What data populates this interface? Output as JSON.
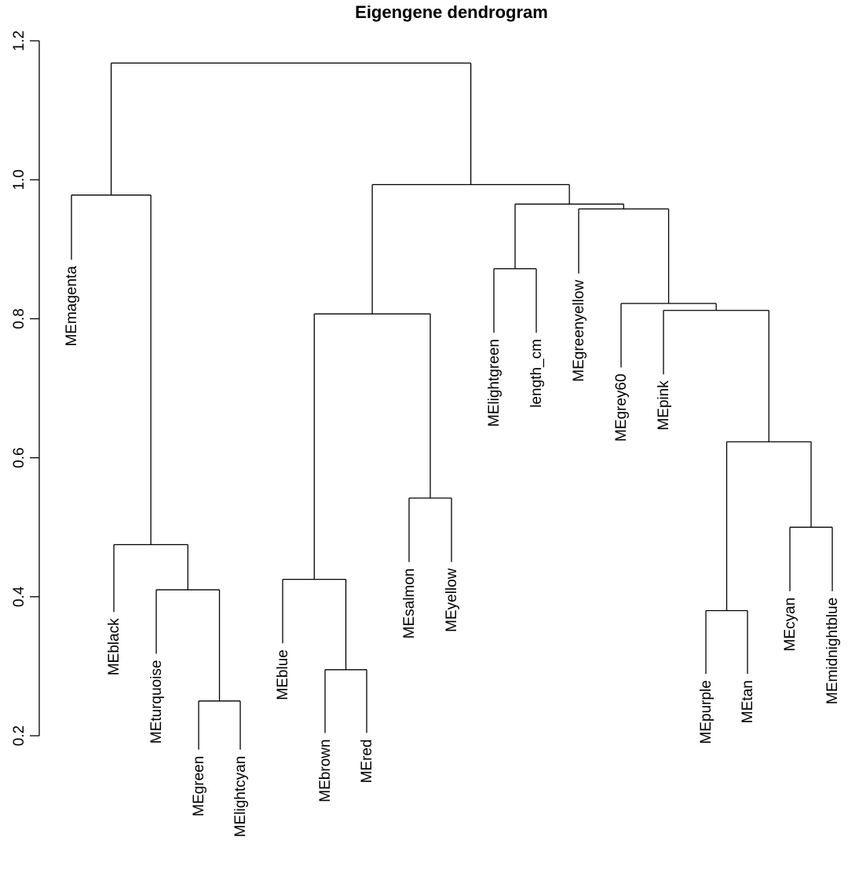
{
  "chart_data": {
    "type": "dendrogram",
    "title": "Eigengene dendrogram",
    "xlabel": "",
    "ylabel": "",
    "ylim": [
      0.2,
      1.2
    ],
    "yticks": [
      0.2,
      0.4,
      0.6,
      0.8,
      1.0,
      1.2
    ],
    "ytick_labels": [
      "0.2",
      "0.4",
      "0.6",
      "0.8",
      "1.0",
      "1.2"
    ],
    "leaves": [
      {
        "label": "MEmagenta",
        "height": 0.885
      },
      {
        "label": "MEblack",
        "height": 0.378
      },
      {
        "label": "MEturquoise",
        "height": 0.318
      },
      {
        "label": "MEgreen",
        "height": 0.18
      },
      {
        "label": "MElightcyan",
        "height": 0.18
      },
      {
        "label": "MEblue",
        "height": 0.333
      },
      {
        "label": "MEbrown",
        "height": 0.204
      },
      {
        "label": "MEred",
        "height": 0.204
      },
      {
        "label": "MEsalmon",
        "height": 0.45
      },
      {
        "label": "MEyellow",
        "height": 0.45
      },
      {
        "label": "MElightgreen",
        "height": 0.78
      },
      {
        "label": "length_cm",
        "height": 0.78
      },
      {
        "label": "MEgreenyellow",
        "height": 0.865
      },
      {
        "label": "MEgrey60",
        "height": 0.73
      },
      {
        "label": "MEpink",
        "height": 0.72
      },
      {
        "label": "MEpurple",
        "height": 0.289
      },
      {
        "label": "MEtan",
        "height": 0.289
      },
      {
        "label": "MEcyan",
        "height": 0.408
      },
      {
        "label": "MEmidnightblue",
        "height": 0.408
      }
    ],
    "merges": [
      {
        "left": "MEgreen",
        "right": "MElightcyan",
        "height": 0.25
      },
      {
        "left": "MEturquoise",
        "right": "m1",
        "height": 0.41
      },
      {
        "left": "MEblack",
        "right": "m2",
        "height": 0.475
      },
      {
        "left": "MEmagenta",
        "right": "m3",
        "height": 0.978
      },
      {
        "left": "MEbrown",
        "right": "MEred",
        "height": 0.295
      },
      {
        "left": "MEblue",
        "right": "m5",
        "height": 0.425
      },
      {
        "left": "MEsalmon",
        "right": "MEyellow",
        "height": 0.542
      },
      {
        "left": "m6",
        "right": "m7",
        "height": 0.807
      },
      {
        "left": "MElightgreen",
        "right": "length_cm",
        "height": 0.872
      },
      {
        "left": "MEpurple",
        "right": "MEtan",
        "height": 0.38
      },
      {
        "left": "MEcyan",
        "right": "MEmidnightblue",
        "height": 0.5
      },
      {
        "left": "m10",
        "right": "m11",
        "height": 0.623
      },
      {
        "left": "MEpink",
        "right": "m12",
        "height": 0.812
      },
      {
        "left": "MEgrey60",
        "right": "m13",
        "height": 0.822
      },
      {
        "left": "MEgreenyellow",
        "right": "m14",
        "height": 0.958
      },
      {
        "left": "m9",
        "right": "m15",
        "height": 0.965
      },
      {
        "left": "m8",
        "right": "m16",
        "height": 0.993
      },
      {
        "left": "m4",
        "right": "m17",
        "height": 1.168
      }
    ]
  }
}
